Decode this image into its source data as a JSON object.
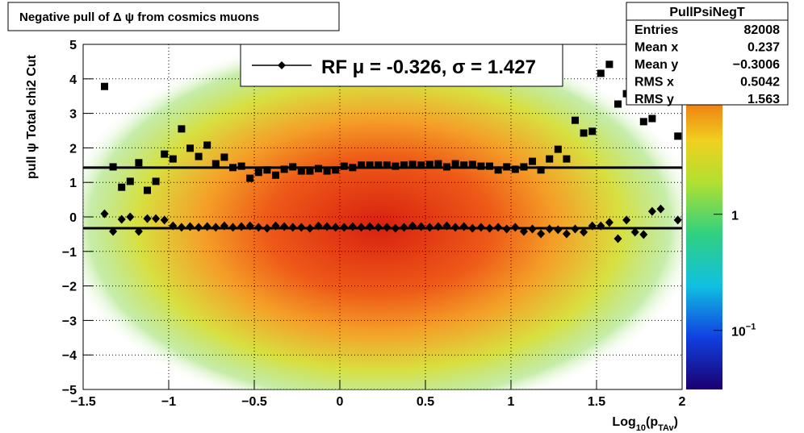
{
  "chart_data": {
    "type": "scatter",
    "title": "Negative pull of Δ ψ from cosmics muons",
    "y_label": "pull ψ    Total chi2 Cut",
    "x_label": {
      "main": "Log",
      "sub1": "10",
      "mid": "(p",
      "sub2": "TAv",
      "end": ")"
    },
    "xlim": [
      -1.5,
      2
    ],
    "ylim": [
      -5,
      5
    ],
    "xticks": [
      {
        "value": -1.5,
        "label": "−1.5"
      },
      {
        "value": -1,
        "label": "−1"
      },
      {
        "value": -0.5,
        "label": "−0.5"
      },
      0,
      0.5,
      1,
      1.5,
      2
    ],
    "yticks": [
      {
        "value": -5,
        "label": "−5"
      },
      {
        "value": -4,
        "label": "−4"
      },
      {
        "value": -3,
        "label": "−3"
      },
      {
        "value": -2,
        "label": "−2"
      },
      {
        "value": -1,
        "label": "−1"
      },
      0,
      1,
      2,
      3,
      4,
      5
    ],
    "grid": true,
    "x": [
      -1.375,
      -1.325,
      -1.275,
      -1.225,
      -1.175,
      -1.125,
      -1.075,
      -1.025,
      -0.975,
      -0.925,
      -0.875,
      -0.825,
      -0.775,
      -0.725,
      -0.675,
      -0.625,
      -0.575,
      -0.525,
      -0.475,
      -0.425,
      -0.375,
      -0.325,
      -0.275,
      -0.225,
      -0.175,
      -0.125,
      -0.075,
      -0.025,
      0.025,
      0.075,
      0.125,
      0.175,
      0.225,
      0.275,
      0.325,
      0.375,
      0.425,
      0.475,
      0.525,
      0.575,
      0.625,
      0.675,
      0.725,
      0.775,
      0.825,
      0.875,
      0.925,
      0.975,
      1.025,
      1.075,
      1.125,
      1.175,
      1.225,
      1.275,
      1.325,
      1.375,
      1.425,
      1.475,
      1.525,
      1.575,
      1.625,
      1.675,
      1.725,
      1.775,
      1.825,
      1.875,
      1.925,
      1.975
    ],
    "series": [
      {
        "marker": "square",
        "color": "#000000",
        "values": [
          3.78,
          1.45,
          0.86,
          1.03,
          1.57,
          0.77,
          1.03,
          1.82,
          1.68,
          2.55,
          1.99,
          1.75,
          2.08,
          1.54,
          1.73,
          1.43,
          1.47,
          1.12,
          1.29,
          1.36,
          1.21,
          1.38,
          1.45,
          1.33,
          1.33,
          1.4,
          1.33,
          1.36,
          1.47,
          1.43,
          1.5,
          1.5,
          1.5,
          1.5,
          1.47,
          1.5,
          1.52,
          1.5,
          1.52,
          1.54,
          1.45,
          1.54,
          1.5,
          1.52,
          1.47,
          1.47,
          1.36,
          1.45,
          1.38,
          1.45,
          1.61,
          1.36,
          1.68,
          1.96,
          1.68,
          2.8,
          2.43,
          2.48,
          4.16,
          4.42,
          3.27,
          3.57,
          null,
          2.76,
          2.85,
          null,
          null,
          2.34
        ]
      },
      {
        "marker": "diamond",
        "color": "#000000",
        "values": [
          0.09,
          -0.42,
          -0.07,
          0.0,
          -0.42,
          -0.05,
          -0.05,
          -0.09,
          -0.26,
          -0.3,
          -0.28,
          -0.3,
          -0.28,
          -0.3,
          -0.26,
          -0.3,
          -0.28,
          -0.26,
          -0.3,
          -0.33,
          -0.26,
          -0.28,
          -0.3,
          -0.3,
          -0.33,
          -0.26,
          -0.28,
          -0.3,
          -0.3,
          -0.28,
          -0.3,
          -0.28,
          -0.3,
          -0.3,
          -0.33,
          -0.3,
          -0.26,
          -0.28,
          -0.3,
          -0.28,
          -0.26,
          -0.3,
          -0.28,
          -0.33,
          -0.3,
          -0.33,
          -0.3,
          -0.35,
          -0.3,
          -0.42,
          -0.35,
          -0.49,
          -0.35,
          -0.37,
          -0.49,
          -0.35,
          -0.44,
          -0.26,
          -0.26,
          -0.16,
          -0.63,
          -0.09,
          -0.44,
          -0.51,
          0.16,
          0.23,
          null,
          -0.09
        ]
      }
    ],
    "fit_lines": [
      -0.326,
      1.427
    ],
    "legend": "RF μ = -0.326, σ =   1.427",
    "zlog": true,
    "zlim": [
      0.031,
      29
    ],
    "zticks": [
      {
        "value": 1,
        "label": "1"
      },
      {
        "value": 0.1,
        "label": "10",
        "exp": "−1"
      }
    ],
    "stats": {
      "title": "PullPsiNegT",
      "rows": [
        [
          "Entries",
          "82008"
        ],
        [
          "Mean x",
          "0.237"
        ],
        [
          "Mean y",
          "−0.3006"
        ],
        [
          "RMS x",
          "0.5042"
        ],
        [
          "RMS y",
          "1.563"
        ]
      ]
    }
  }
}
